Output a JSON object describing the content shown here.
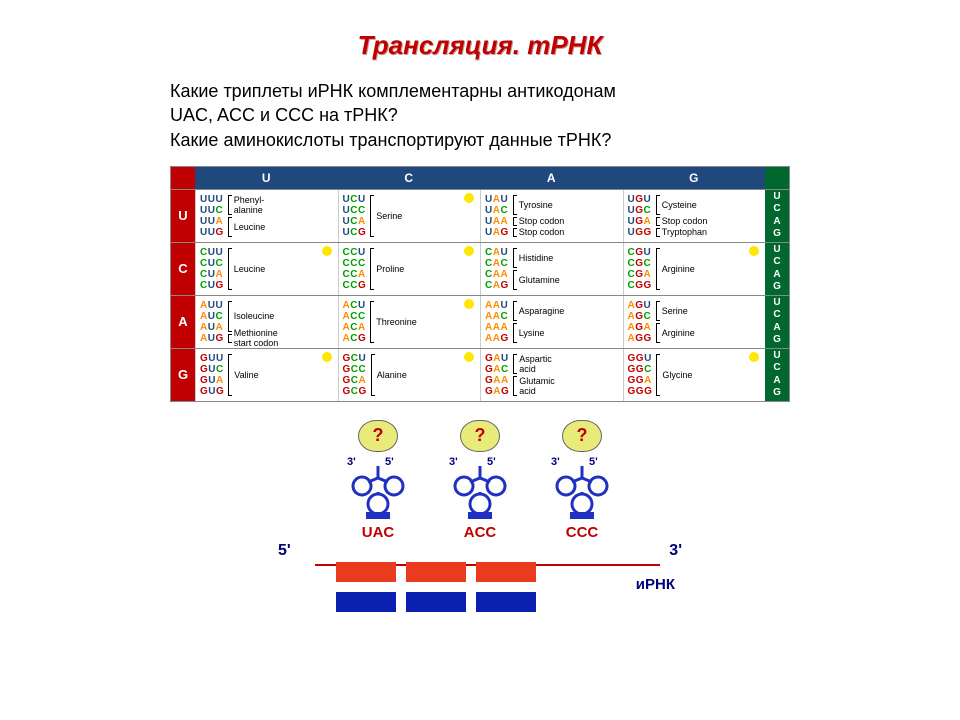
{
  "title": "Трансляция. тРНК",
  "question_l1": "Какие триплеты иРНК комплементарны антикодонам",
  "question_l2": "UAC, ACC и CCC на тРНК?",
  "question_l3": "Какие аминокислоты транспортируют данные тРНК?",
  "colors": {
    "title": "#c00000",
    "header_bg": "#1f497d",
    "left_bg": "#c00000",
    "right_bg": "#00682f",
    "mrna_red": "#ea3a1f",
    "mrna_blue": "#0b1fb0",
    "aa_fill": "#e8ea7a",
    "trna_stroke": "#2030c0"
  },
  "bases": [
    "U",
    "C",
    "A",
    "G"
  ],
  "table": [
    [
      {
        "codons": [
          "UUU",
          "UUC",
          "UUA",
          "UUG"
        ],
        "aa": [
          {
            "h": 2,
            "t": "Phenyl-\\nalanine"
          },
          {
            "h": 2,
            "t": "Leucine"
          }
        ],
        "dot": false
      },
      {
        "codons": [
          "UCU",
          "UCC",
          "UCA",
          "UCG"
        ],
        "aa": [
          {
            "h": 4,
            "t": "Serine"
          }
        ],
        "dot": true
      },
      {
        "codons": [
          "UAU",
          "UAC",
          "UAA",
          "UAG"
        ],
        "aa": [
          {
            "h": 2,
            "t": "Tyrosine"
          },
          {
            "h": 1,
            "t": "Stop codon"
          },
          {
            "h": 1,
            "t": "Stop codon"
          }
        ],
        "dot": false
      },
      {
        "codons": [
          "UGU",
          "UGC",
          "UGA",
          "UGG"
        ],
        "aa": [
          {
            "h": 2,
            "t": "Cysteine"
          },
          {
            "h": 1,
            "t": "Stop codon"
          },
          {
            "h": 1,
            "t": "Tryptophan"
          }
        ],
        "dot": false
      }
    ],
    [
      {
        "codons": [
          "CUU",
          "CUC",
          "CUA",
          "CUG"
        ],
        "aa": [
          {
            "h": 4,
            "t": "Leucine"
          }
        ],
        "dot": true
      },
      {
        "codons": [
          "CCU",
          "CCC",
          "CCA",
          "CCG"
        ],
        "aa": [
          {
            "h": 4,
            "t": "Proline"
          }
        ],
        "dot": true
      },
      {
        "codons": [
          "CAU",
          "CAC",
          "CAA",
          "CAG"
        ],
        "aa": [
          {
            "h": 2,
            "t": "Histidine"
          },
          {
            "h": 2,
            "t": "Glutamine"
          }
        ],
        "dot": false
      },
      {
        "codons": [
          "CGU",
          "CGC",
          "CGA",
          "CGG"
        ],
        "aa": [
          {
            "h": 4,
            "t": "Arginine"
          }
        ],
        "dot": true
      }
    ],
    [
      {
        "codons": [
          "AUU",
          "AUC",
          "AUA",
          "AUG"
        ],
        "aa": [
          {
            "h": 3,
            "t": "Isoleucine"
          },
          {
            "h": 1,
            "t": "Methionine\\nstart codon"
          }
        ],
        "dot": false
      },
      {
        "codons": [
          "ACU",
          "ACC",
          "ACA",
          "ACG"
        ],
        "aa": [
          {
            "h": 4,
            "t": "Threonine"
          }
        ],
        "dot": true
      },
      {
        "codons": [
          "AAU",
          "AAC",
          "AAA",
          "AAG"
        ],
        "aa": [
          {
            "h": 2,
            "t": "Asparagine"
          },
          {
            "h": 2,
            "t": "Lysine"
          }
        ],
        "dot": false
      },
      {
        "codons": [
          "AGU",
          "AGC",
          "AGA",
          "AGG"
        ],
        "aa": [
          {
            "h": 2,
            "t": "Serine"
          },
          {
            "h": 2,
            "t": "Arginine"
          }
        ],
        "dot": false
      }
    ],
    [
      {
        "codons": [
          "GUU",
          "GUC",
          "GUA",
          "GUG"
        ],
        "aa": [
          {
            "h": 4,
            "t": "Valine"
          }
        ],
        "dot": true
      },
      {
        "codons": [
          "GCU",
          "GCC",
          "GCA",
          "GCG"
        ],
        "aa": [
          {
            "h": 4,
            "t": "Alanine"
          }
        ],
        "dot": true
      },
      {
        "codons": [
          "GAU",
          "GAC",
          "GAA",
          "GAG"
        ],
        "aa": [
          {
            "h": 2,
            "t": "Aspartic\\nacid"
          },
          {
            "h": 2,
            "t": "Glutamic\\nacid"
          }
        ],
        "dot": false
      },
      {
        "codons": [
          "GGU",
          "GGC",
          "GGA",
          "GGG"
        ],
        "aa": [
          {
            "h": 4,
            "t": "Glycine"
          }
        ],
        "dot": true
      }
    ]
  ],
  "diagram": {
    "trnas": [
      {
        "aa": "?",
        "anticodon": "UAC"
      },
      {
        "aa": "?",
        "anticodon": "ACC"
      },
      {
        "aa": "?",
        "anticodon": "CCC"
      }
    ],
    "label3": "3'",
    "label5": "5'",
    "five": "5'",
    "three": "3'",
    "mrna_label": "иРНК"
  }
}
